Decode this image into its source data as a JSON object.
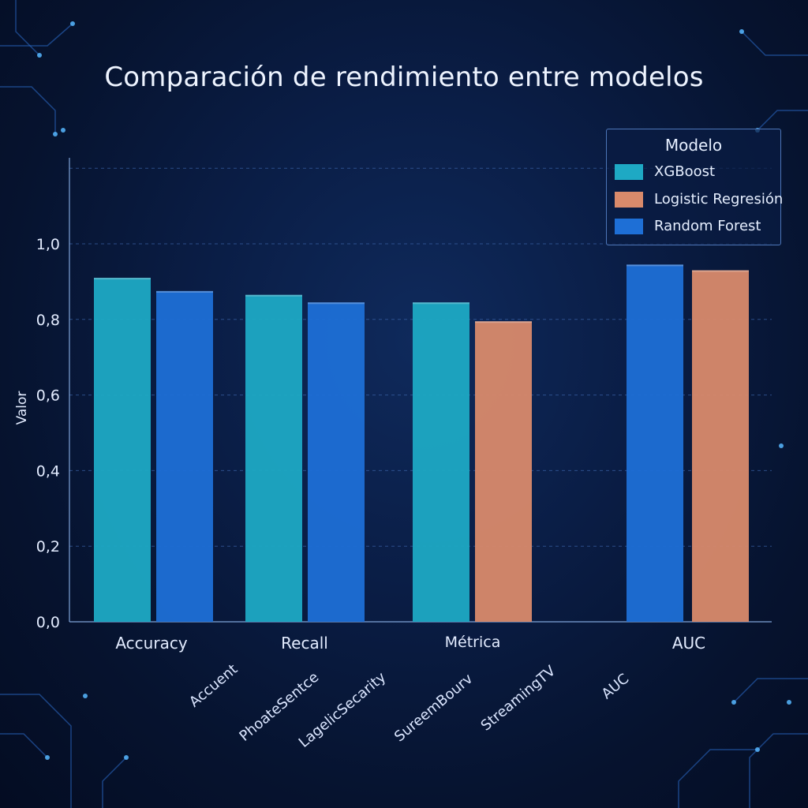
{
  "chart_data": {
    "type": "bar",
    "title": "Comparación de rendimiento entre modelos",
    "xlabel": "Métrica",
    "ylabel": "Valor",
    "ylim": [
      0,
      1.2
    ],
    "yticks": [
      "0,0",
      "0,2",
      "0,4",
      "0,6",
      "0,8",
      "1,0"
    ],
    "grid": true,
    "legend": {
      "title": "Modelo",
      "placement": "top-right",
      "entries": [
        {
          "name": "XGBoost",
          "color": "#1ea9c4"
        },
        {
          "name": "Logistic Regresión",
          "color": "#d98a6b"
        },
        {
          "name": "Random Forest",
          "color": "#1e6fd6"
        }
      ]
    },
    "categories": [
      "Accuracy",
      "Recall",
      "AUC"
    ],
    "groups": [
      {
        "category": "Accuracy",
        "bars": [
          {
            "series": "XGBoost",
            "value": 0.91
          },
          {
            "series": "Random Forest",
            "value": 0.875
          }
        ]
      },
      {
        "category": "Recall",
        "bars": [
          {
            "series": "XGBoost",
            "value": 0.865
          },
          {
            "series": "Random Forest",
            "value": 0.845
          }
        ]
      },
      {
        "category": "",
        "bars": [
          {
            "series": "XGBoost",
            "value": 0.845
          },
          {
            "series": "Logistic Regresión",
            "value": 0.795
          }
        ]
      },
      {
        "category": "AUC",
        "bars": [
          {
            "series": "Random Forest",
            "value": 0.945
          },
          {
            "series": "Logistic Regresión",
            "value": 0.93
          }
        ]
      }
    ],
    "extra_tick_labels": [
      "Accuent",
      "PhoateSentce",
      "LagelicSecarity",
      "SureemBourv",
      "StreamingTV",
      "AUC"
    ]
  }
}
